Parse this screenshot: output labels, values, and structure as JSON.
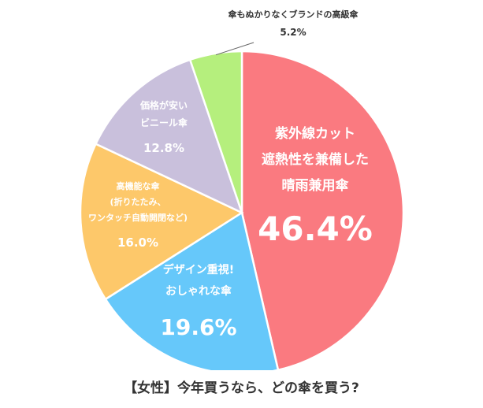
{
  "chart_data": {
    "type": "pie",
    "title": "【女性】今年買うなら、どの傘を買う?",
    "slices": [
      {
        "label_lines": [
          "紫外線カット",
          "遮熱性を兼備した",
          "晴雨兼用傘"
        ],
        "value": 46.4,
        "value_label": "46.4%",
        "color": "#fa7a80"
      },
      {
        "label_lines": [
          "デザイン重視!",
          "おしゃれな傘"
        ],
        "value": 19.6,
        "value_label": "19.6%",
        "color": "#66c8fa"
      },
      {
        "label_lines": [
          "高機能な傘",
          "(折りたたみ、",
          "ワンタッチ自動開閉など)"
        ],
        "value": 16.0,
        "value_label": "16.0%",
        "color": "#fdc86a"
      },
      {
        "label_lines": [
          "価格が安い",
          "ビニール傘"
        ],
        "value": 12.8,
        "value_label": "12.8%",
        "color": "#c9c0dc"
      },
      {
        "label_lines": [
          "傘もぬかりなくブランドの高級傘"
        ],
        "value": 5.2,
        "value_label": "5.2%",
        "color": "#b5ef7d"
      }
    ]
  }
}
